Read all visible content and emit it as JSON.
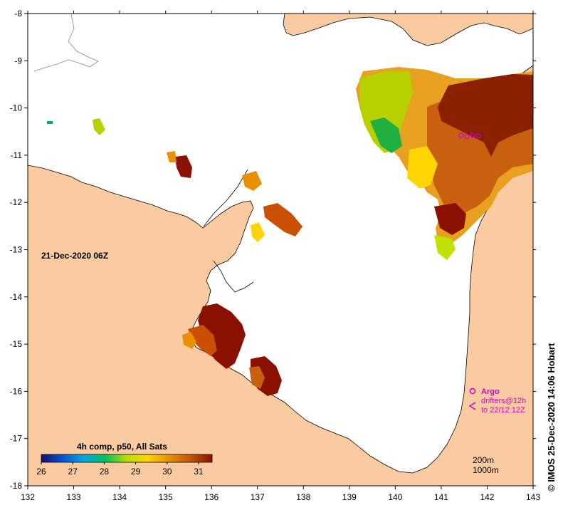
{
  "map": {
    "timestamp": "21-Dec-2020 06Z",
    "credit": "© IMOS 25-Dec-2020 14:06 Hobart",
    "x_ticks": [
      "132",
      "133",
      "134",
      "135",
      "136",
      "137",
      "138",
      "139",
      "140",
      "141",
      "142",
      "143"
    ],
    "y_ticks": [
      "-8",
      "-9",
      "-10",
      "-11",
      "-12",
      "-13",
      "-14",
      "-15",
      "-16",
      "-17",
      "-18"
    ],
    "colorbar": {
      "title": "4h comp, p50, All Sats",
      "labels": [
        "26",
        "27",
        "28",
        "29",
        "30",
        "31"
      ],
      "colors": [
        "#1a0c6e",
        "#0055d6",
        "#00a8e0",
        "#00c060",
        "#b8e000",
        "#ffd400",
        "#e89000",
        "#c85000",
        "#8a1000"
      ]
    },
    "legend": {
      "argo": "Argo",
      "drifters": "drifters@12h",
      "to": "to 22/12 12Z"
    },
    "scale": {
      "depth1": "200m",
      "depth2": "1000m"
    },
    "colors": {
      "land": "#facba0",
      "sea": "#ffffff",
      "marker": "#d000d0"
    }
  }
}
